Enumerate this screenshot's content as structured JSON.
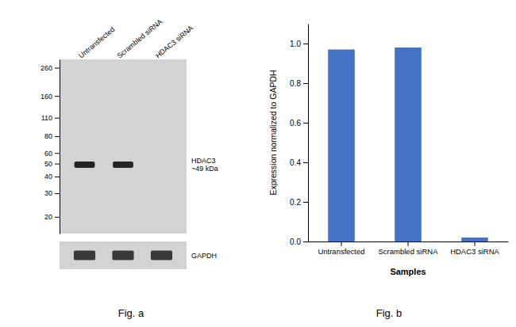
{
  "chart_data": [
    {
      "type": "blot",
      "title": "Fig. a",
      "categories": [
        "Untransfected",
        "Scrambled siRNA",
        "HDAC3 siRNA"
      ],
      "log": "y",
      "ylim": [
        15,
        300
      ],
      "yticks": [
        260,
        160,
        110,
        80,
        60,
        50,
        40,
        30,
        20
      ],
      "series": [
        {
          "name": "HDAC3\n~49 kDa",
          "values": [
            49,
            49,
            null
          ]
        }
      ],
      "annotations": [
        "GAPDH"
      ],
      "color": "#d3d3d3"
    },
    {
      "type": "bar",
      "title": "Fig. b",
      "xlabel": "Samples",
      "ylabel": "Expression normalized to GAPDH",
      "categories": [
        "Untransfected",
        "Scrambled siRNA",
        "HDAC3 siRNA"
      ],
      "values": [
        0.97,
        0.98,
        0.02
      ],
      "color": "#4472C4",
      "ylim": [
        0,
        1.1
      ],
      "yticks": [
        {
          "value": 0,
          "label": "0.0"
        },
        0.2,
        0.4,
        0.6,
        0.8,
        {
          "value": 1.0,
          "label": "1.0"
        }
      ],
      "grid": false
    }
  ]
}
